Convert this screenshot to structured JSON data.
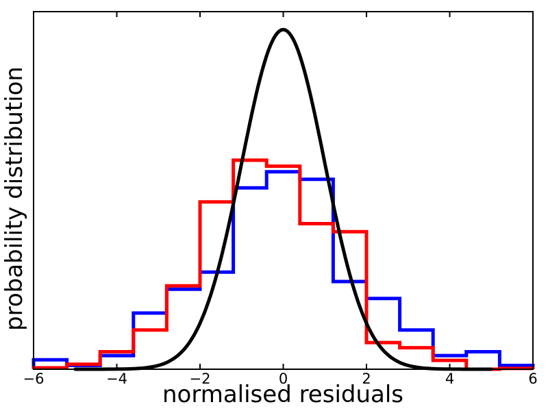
{
  "figure": {
    "background_color": "#ffffff",
    "axis_color": "#000000"
  },
  "chart_data": {
    "type": "histogram-step+line",
    "title": "",
    "xlabel": "normalised residuals",
    "ylabel": "probability distribution",
    "xlim": [
      -6,
      6
    ],
    "ylim": [
      0,
      0.42
    ],
    "xticks": [
      -6,
      -4,
      -2,
      0,
      2,
      4,
      6
    ],
    "xtick_labels": [
      "−6",
      "−4",
      "−2",
      "0",
      "2",
      "4",
      "6"
    ],
    "yticks": [],
    "grid": false,
    "legend": false,
    "bin_edges": [
      -6.0,
      -5.2,
      -4.4,
      -3.6,
      -2.8,
      -2.0,
      -1.2,
      -0.4,
      0.4,
      1.2,
      2.0,
      2.8,
      3.6,
      4.4,
      5.2,
      6.0
    ],
    "series": [
      {
        "name": "blue step histogram",
        "color": "#0000ff",
        "values": [
          0.011,
          0.0044,
          0.016,
          0.066,
          0.094,
          0.114,
          0.213,
          0.232,
          0.223,
          0.103,
          0.083,
          0.046,
          0.016,
          0.0205,
          0.0044
        ]
      },
      {
        "name": "red step histogram",
        "color": "#ff0000",
        "values": [
          0.0016,
          0.0058,
          0.0205,
          0.046,
          0.098,
          0.1965,
          0.2455,
          0.2385,
          0.171,
          0.1615,
          0.0313,
          0.0253,
          0.0104,
          0.0,
          0.0009
        ]
      }
    ],
    "curve": {
      "name": "standard normal pdf",
      "color": "#000000",
      "mean": 0,
      "sigma": 1,
      "peak": 0.3989,
      "x_range": [
        -5,
        5
      ]
    }
  }
}
